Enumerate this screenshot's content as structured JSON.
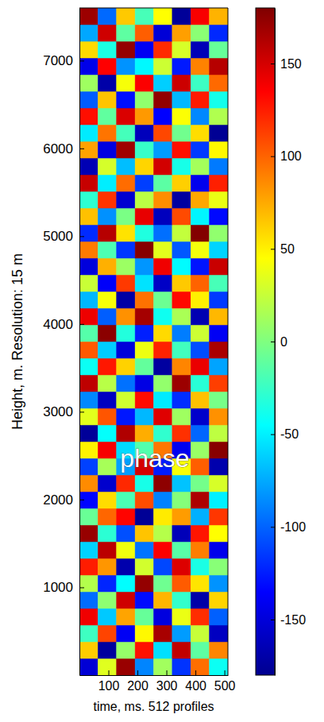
{
  "chart_data": {
    "type": "heatmap",
    "xlabel": "time, ms. 512 profiles",
    "ylabel": "Height, m. Resolution: 15 m",
    "annotations": [
      {
        "text": "phase",
        "x": 260,
        "y": 2450
      }
    ],
    "xlim": [
      0,
      512
    ],
    "ylim": [
      0,
      7600
    ],
    "xticks": [
      100,
      200,
      300,
      400,
      500
    ],
    "yticks": [
      1000,
      2000,
      3000,
      4000,
      5000,
      6000,
      7000
    ],
    "x_bins": [
      0,
      64,
      128,
      192,
      256,
      320,
      384,
      448,
      512
    ],
    "y_bins": [
      0,
      190,
      380,
      570,
      760,
      950,
      1140,
      1330,
      1520,
      1710,
      1900,
      2090,
      2280,
      2470,
      2660,
      2850,
      3040,
      3230,
      3420,
      3610,
      3800,
      3990,
      4180,
      4370,
      4560,
      4750,
      4940,
      5130,
      5320,
      5510,
      5700,
      5890,
      6080,
      6270,
      6460,
      6650,
      6840,
      7030,
      7220,
      7410,
      7600
    ],
    "values": [
      [
        -152,
        34,
        171,
        -88,
        12,
        -117,
        96,
        -41
      ],
      [
        63,
        -174,
        8,
        129,
        -56,
        157,
        -12,
        88
      ],
      [
        -23,
        111,
        -139,
        47,
        166,
        -80,
        25,
        -160
      ],
      [
        140,
        -64,
        77,
        -9,
        -148,
        38,
        119,
        -101
      ],
      [
        -97,
        5,
        152,
        -131,
        71,
        -27,
        -170,
        60
      ],
      [
        18,
        -122,
        -45,
        173,
        -6,
        103,
        54,
        -83
      ],
      [
        125,
        82,
        -168,
        29,
        -110,
        147,
        -36,
        3
      ],
      [
        -61,
        159,
        40,
        -94,
        136,
        -14,
        91,
        -143
      ],
      [
        172,
        -30,
        -107,
        66,
        19,
        -163,
        128,
        45
      ],
      [
        -8,
        99,
        134,
        -177,
        52,
        80,
        -73,
        116
      ],
      [
        -134,
        57,
        -19,
        108,
        -89,
        2,
        164,
        -50
      ],
      [
        86,
        -155,
        121,
        -37,
        175,
        -66,
        -4,
        31
      ],
      [
        -112,
        14,
        -79,
        150,
        -125,
        43,
        102,
        -168
      ],
      [
        49,
        138,
        -58,
        -16,
        93,
        -141,
        9,
        177
      ],
      [
        -176,
        -44,
        163,
        74,
        -28,
        118,
        -99,
        22
      ],
      [
        35,
        105,
        -127,
        -70,
        146,
        11,
        -156,
        84
      ],
      [
        -87,
        -160,
        28,
        131,
        -52,
        -119,
        67,
        -3
      ],
      [
        158,
        20,
        -95,
        -146,
        7,
        170,
        -31,
        113
      ],
      [
        -41,
        127,
        61,
        -10,
        -173,
        88,
        142,
        -77
      ],
      [
        104,
        -63,
        -150,
        39,
        123,
        -22,
        -108,
        165
      ],
      [
        -15,
        176,
        -33,
        -124,
        58,
        -91,
        27,
        -139
      ],
      [
        141,
        -102,
        84,
        167,
        -40,
        15,
        -166,
        70
      ],
      [
        -70,
        42,
        -171,
        95,
        -7,
        132,
        50,
        -115
      ],
      [
        26,
        -137,
        115,
        -55,
        -158,
        64,
        100,
        -20
      ],
      [
        -149,
        73,
        10,
        -82,
        140,
        -46,
        -128,
        154
      ],
      [
        92,
        -18,
        -116,
        178,
        35,
        -104,
        41,
        -60
      ],
      [
        -120,
        161,
        55,
        -34,
        -96,
        24,
        179,
        6
      ],
      [
        67,
        -84,
        -2,
        143,
        -161,
        109,
        -48,
        -132
      ],
      [
        -29,
        117,
        -154,
        21,
        85,
        -173,
        76,
        38
      ],
      [
        155,
        -51,
        97,
        -113,
        -13,
        62,
        -142,
        124
      ],
      [
        -165,
        30,
        -68,
        60,
        151,
        -37,
        13,
        -92
      ],
      [
        78,
        -147,
        169,
        -26,
        -80,
        130,
        -115,
        47
      ],
      [
        -52,
        94,
        -21,
        -162,
        110,
        -5,
        57,
        -178
      ],
      [
        130,
        -11,
        148,
        81,
        -135,
        44,
        -87,
        17
      ],
      [
        -103,
        66,
        -130,
        6,
        174,
        -70,
        126,
        -38
      ],
      [
        11,
        -170,
        42,
        136,
        -62,
        153,
        -24,
        98
      ],
      [
        -144,
        135,
        -83,
        -47,
        27,
        -126,
        89,
        161
      ],
      [
        58,
        -35,
        173,
        -140,
        120,
        31,
        -164,
        -9
      ],
      [
        -76,
        152,
        -12,
        102,
        -151,
        79,
        4,
        -121
      ],
      [
        170,
        -98,
        64,
        -20,
        45,
        -176,
        137,
        72
      ]
    ],
    "colorbar": {
      "lim": [
        -180,
        180
      ],
      "ticks": [
        -150,
        -100,
        -50,
        0,
        50,
        100,
        150
      ]
    }
  }
}
